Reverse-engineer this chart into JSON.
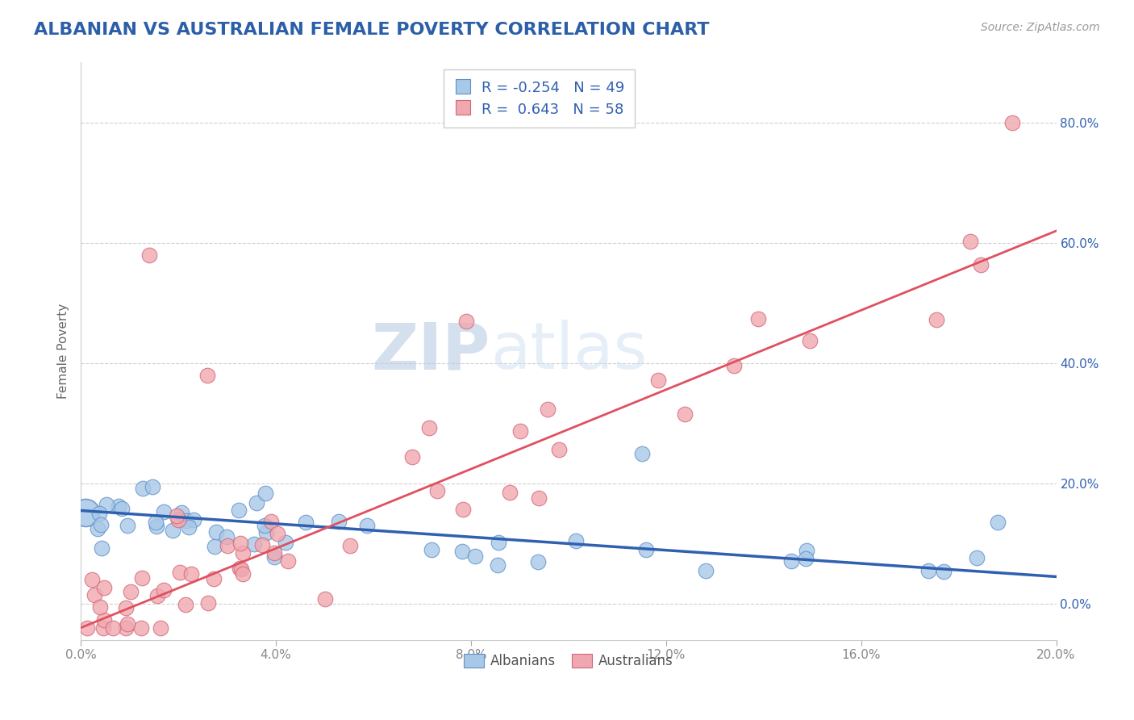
{
  "title": "ALBANIAN VS AUSTRALIAN FEMALE POVERTY CORRELATION CHART",
  "source": "Source: ZipAtlas.com",
  "ylabel": "Female Poverty",
  "xlim": [
    0.0,
    0.2
  ],
  "ylim": [
    -0.06,
    0.9
  ],
  "xtick_positions": [
    0.0,
    0.04,
    0.08,
    0.12,
    0.16,
    0.2
  ],
  "xticklabels": [
    "0.0%",
    "4.0%",
    "8.0%",
    "12.0%",
    "16.0%",
    "20.0%"
  ],
  "ytick_positions": [
    0.0,
    0.2,
    0.4,
    0.6,
    0.8
  ],
  "yticklabels": [
    "0.0%",
    "20.0%",
    "40.0%",
    "60.0%",
    "80.0%"
  ],
  "watermark": "ZIPAtlas",
  "legend_r_albanian": "-0.254",
  "legend_n_albanian": "49",
  "legend_r_australian": "0.643",
  "legend_n_australian": "58",
  "albanian_color": "#a8c8e8",
  "australian_color": "#f0a8b0",
  "albanian_edge_color": "#6090c8",
  "australian_edge_color": "#d06878",
  "albanian_line_color": "#3060b0",
  "australian_line_color": "#e05060",
  "title_color": "#2c5fa8",
  "axis_label_color": "#666666",
  "tick_color": "#888888",
  "grid_color": "#d0d0d0",
  "background_color": "#ffffff",
  "legend_text_color": "#3060b0",
  "legend_box_color": "#3060b0",
  "albanian_intercept": 0.155,
  "albanian_slope": -0.55,
  "australian_intercept": -0.04,
  "australian_slope": 3.3
}
